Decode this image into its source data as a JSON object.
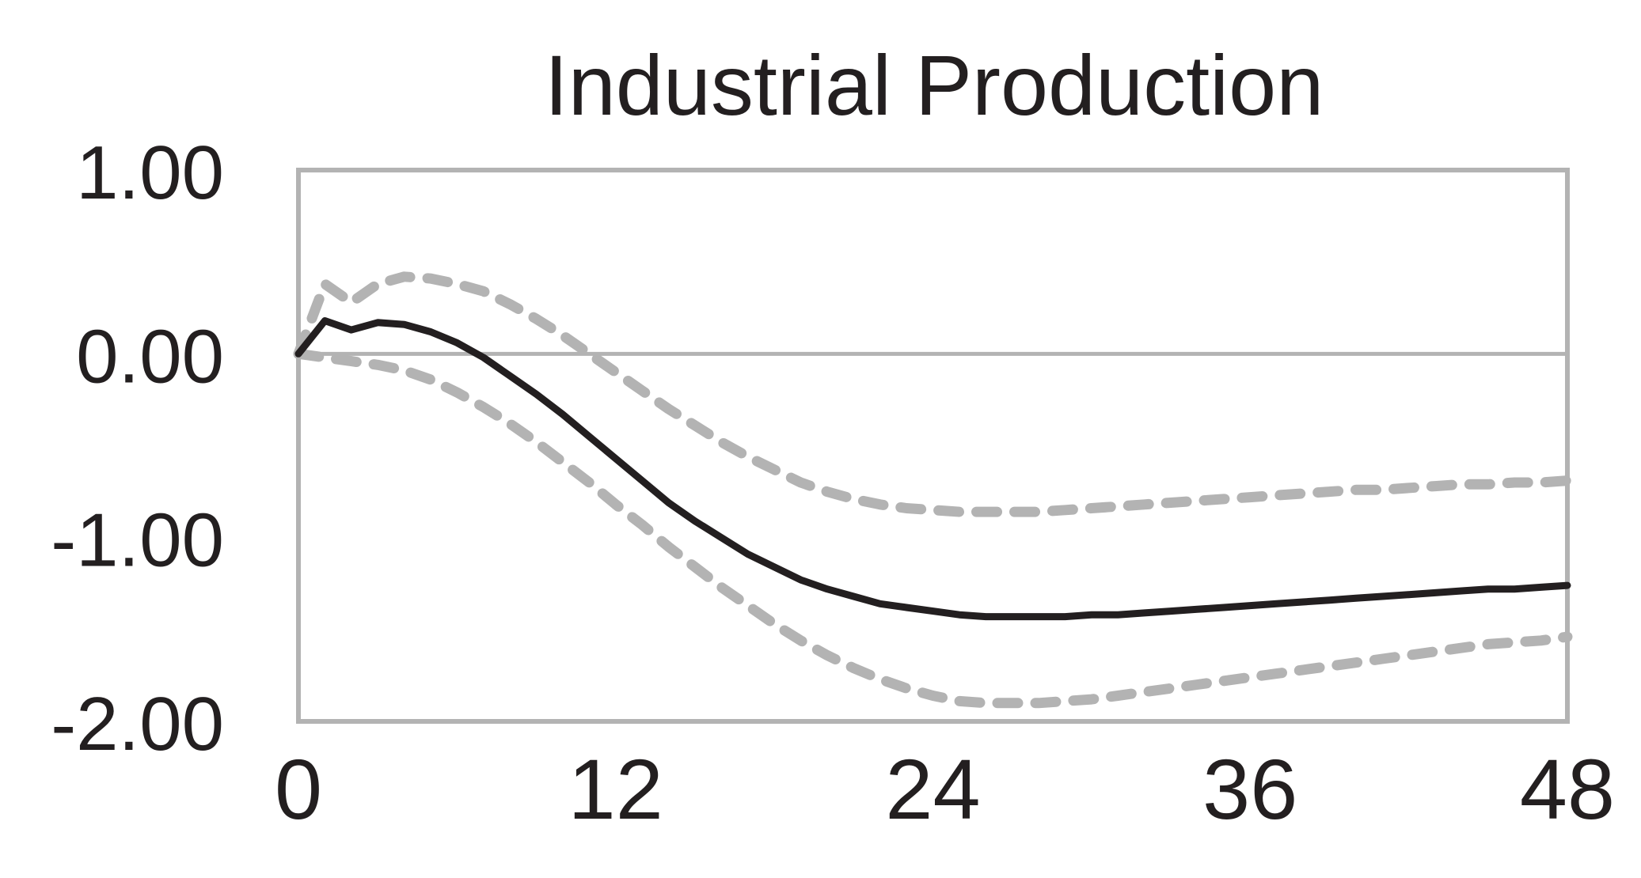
{
  "colors": {
    "frame": "#b3b3b3",
    "zero_line": "#b3b3b3",
    "response_line": "#231f20",
    "band_line": "#b3b3b3",
    "text": "#231f20"
  },
  "chart_data": {
    "type": "line",
    "title": "Industrial Production",
    "xlabel": "",
    "ylabel": "",
    "xlim": [
      0,
      48
    ],
    "ylim": [
      -2,
      1
    ],
    "x_ticks": [
      0,
      12,
      24,
      36,
      48
    ],
    "x_tick_labels": [
      "0",
      "12",
      "24",
      "36",
      "48"
    ],
    "y_ticks": [
      1,
      0,
      -1,
      -2
    ],
    "y_tick_labels": [
      "1.00",
      "0.00",
      "-1.00",
      "-2.00"
    ],
    "zero_line": true,
    "grid": false,
    "legend": "none",
    "x": [
      0,
      1,
      2,
      3,
      4,
      5,
      6,
      7,
      8,
      9,
      10,
      11,
      12,
      13,
      14,
      15,
      16,
      17,
      18,
      19,
      20,
      21,
      22,
      23,
      24,
      25,
      26,
      27,
      28,
      29,
      30,
      31,
      32,
      33,
      34,
      35,
      36,
      37,
      38,
      39,
      40,
      41,
      42,
      43,
      44,
      45,
      46,
      47,
      48
    ],
    "series": [
      {
        "style": "solid",
        "values": [
          0.0,
          0.18,
          0.13,
          0.17,
          0.16,
          0.12,
          0.06,
          -0.02,
          -0.12,
          -0.22,
          -0.33,
          -0.45,
          -0.57,
          -0.69,
          -0.81,
          -0.91,
          -1.0,
          -1.09,
          -1.16,
          -1.23,
          -1.28,
          -1.32,
          -1.36,
          -1.38,
          -1.4,
          -1.42,
          -1.43,
          -1.43,
          -1.43,
          -1.43,
          -1.42,
          -1.42,
          -1.41,
          -1.4,
          -1.39,
          -1.38,
          -1.37,
          -1.36,
          -1.35,
          -1.34,
          -1.33,
          -1.32,
          -1.31,
          -1.3,
          -1.29,
          -1.28,
          -1.28,
          -1.27,
          -1.26
        ]
      },
      {
        "style": "dashed",
        "values": [
          0.0,
          0.38,
          0.28,
          0.38,
          0.42,
          0.41,
          0.38,
          0.34,
          0.27,
          0.19,
          0.1,
          0.0,
          -0.1,
          -0.2,
          -0.3,
          -0.39,
          -0.48,
          -0.56,
          -0.63,
          -0.7,
          -0.75,
          -0.79,
          -0.82,
          -0.84,
          -0.85,
          -0.86,
          -0.86,
          -0.86,
          -0.86,
          -0.85,
          -0.84,
          -0.83,
          -0.82,
          -0.81,
          -0.8,
          -0.79,
          -0.78,
          -0.77,
          -0.76,
          -0.75,
          -0.74,
          -0.74,
          -0.73,
          -0.72,
          -0.71,
          -0.71,
          -0.7,
          -0.7,
          -0.69
        ]
      },
      {
        "style": "dashed",
        "values": [
          0.0,
          -0.02,
          -0.04,
          -0.06,
          -0.09,
          -0.14,
          -0.21,
          -0.29,
          -0.38,
          -0.48,
          -0.59,
          -0.7,
          -0.82,
          -0.93,
          -1.05,
          -1.16,
          -1.27,
          -1.37,
          -1.47,
          -1.56,
          -1.64,
          -1.71,
          -1.77,
          -1.82,
          -1.86,
          -1.89,
          -1.9,
          -1.9,
          -1.9,
          -1.89,
          -1.88,
          -1.86,
          -1.84,
          -1.82,
          -1.8,
          -1.78,
          -1.76,
          -1.74,
          -1.72,
          -1.7,
          -1.68,
          -1.66,
          -1.64,
          -1.62,
          -1.6,
          -1.58,
          -1.57,
          -1.56,
          -1.54
        ]
      }
    ]
  }
}
